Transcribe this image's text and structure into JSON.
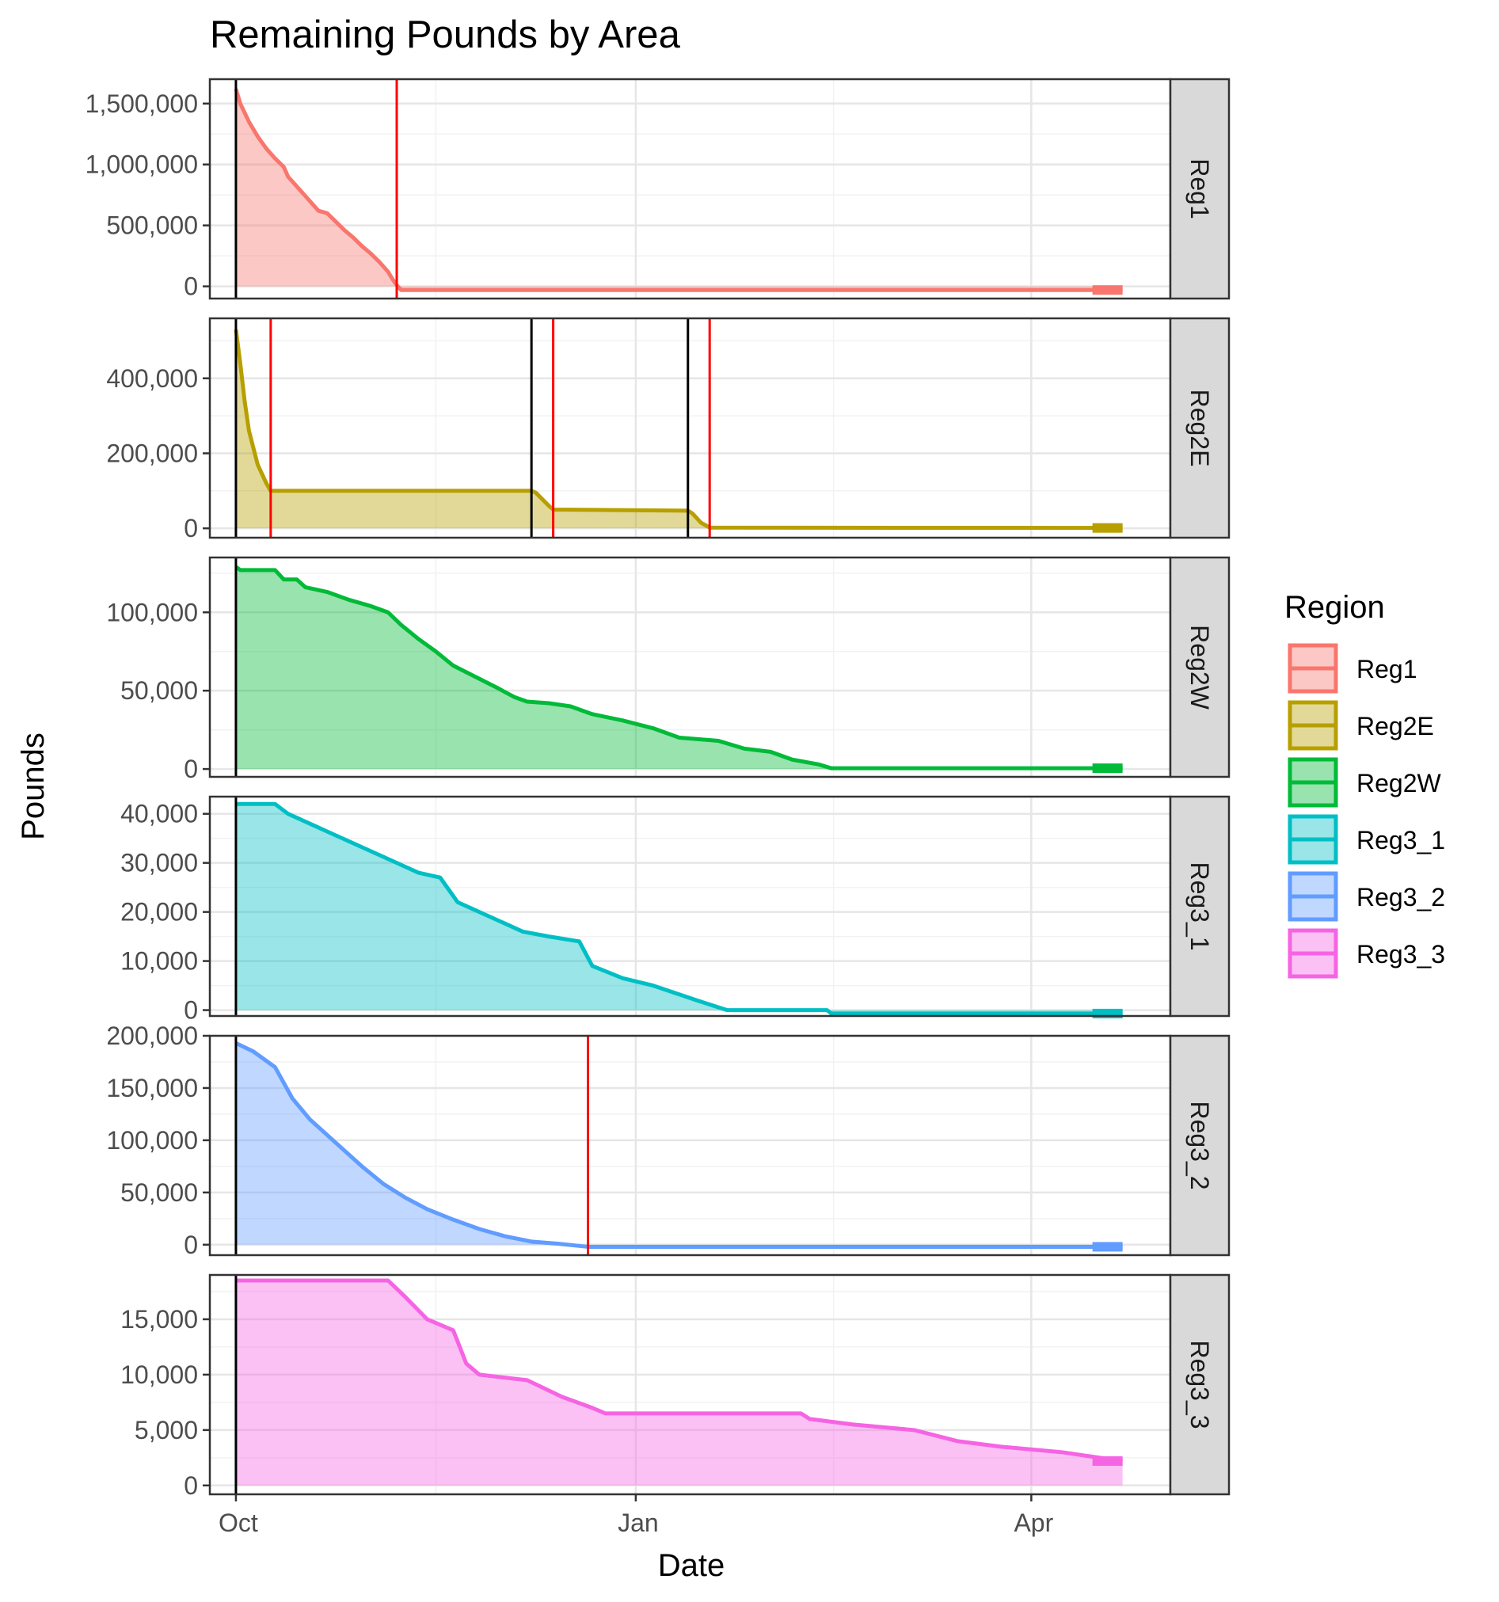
{
  "chart_data": {
    "type": "area",
    "title": "Remaining Pounds by Area",
    "xlabel": "Date",
    "ylabel": "Pounds",
    "x_axis": {
      "min": "2023-09-25",
      "max": "2024-05-03",
      "ticks": [
        {
          "date": "2023-10-01",
          "label": "Oct"
        },
        {
          "date": "2024-01-01",
          "label": "Jan"
        },
        {
          "date": "2024-04-01",
          "label": "Apr"
        }
      ]
    },
    "grid": true,
    "legend": {
      "title": "Region",
      "position": "right",
      "entries": [
        "Reg1",
        "Reg2E",
        "Reg2W",
        "Reg3_1",
        "Reg3_2",
        "Reg3_3"
      ]
    },
    "colors": {
      "Reg1": "#F8766D",
      "Reg2E": "#B79F00",
      "Reg2W": "#00BA38",
      "Reg3_1": "#00BFC4",
      "Reg3_2": "#619CFF",
      "Reg3_3": "#F564E3",
      "open_line": "#000000",
      "close_line": "#FF0000"
    },
    "panels": [
      {
        "name": "Reg1",
        "ylim": [
          -100000,
          1700000
        ],
        "yticks": [
          0,
          500000,
          1000000,
          1500000
        ],
        "ytick_labels": [
          "0",
          "500,000",
          "1,000,000",
          "1,500,000"
        ],
        "open_dates": [
          "2023-10-01"
        ],
        "close_dates": [
          "2023-11-07"
        ],
        "points": [
          [
            "2023-10-01",
            1620000
          ],
          [
            "2023-10-02",
            1500000
          ],
          [
            "2023-10-04",
            1350000
          ],
          [
            "2023-10-06",
            1230000
          ],
          [
            "2023-10-08",
            1130000
          ],
          [
            "2023-10-10",
            1050000
          ],
          [
            "2023-10-12",
            980000
          ],
          [
            "2023-10-13",
            900000
          ],
          [
            "2023-10-15",
            820000
          ],
          [
            "2023-10-17",
            740000
          ],
          [
            "2023-10-19",
            660000
          ],
          [
            "2023-10-20",
            620000
          ],
          [
            "2023-10-22",
            600000
          ],
          [
            "2023-10-24",
            530000
          ],
          [
            "2023-10-26",
            460000
          ],
          [
            "2023-10-28",
            400000
          ],
          [
            "2023-10-30",
            330000
          ],
          [
            "2023-11-01",
            270000
          ],
          [
            "2023-11-03",
            200000
          ],
          [
            "2023-11-05",
            120000
          ],
          [
            "2023-11-06",
            60000
          ],
          [
            "2023-11-07",
            10000
          ],
          [
            "2023-11-08",
            -30000
          ],
          [
            "2024-04-15",
            -30000
          ],
          [
            "2024-04-22",
            -30000
          ]
        ]
      },
      {
        "name": "Reg2E",
        "ylim": [
          -25000,
          560000
        ],
        "yticks": [
          0,
          200000,
          400000
        ],
        "ytick_labels": [
          "0",
          "200,000",
          "400,000"
        ],
        "open_dates": [
          "2023-10-01",
          "2023-12-08",
          "2024-01-13"
        ],
        "close_dates": [
          "2023-10-09",
          "2023-12-13",
          "2024-01-18"
        ],
        "points": [
          [
            "2023-10-01",
            530000
          ],
          [
            "2023-10-02",
            440000
          ],
          [
            "2023-10-03",
            340000
          ],
          [
            "2023-10-04",
            260000
          ],
          [
            "2023-10-06",
            170000
          ],
          [
            "2023-10-08",
            120000
          ],
          [
            "2023-10-09",
            100000
          ],
          [
            "2023-12-08",
            100000
          ],
          [
            "2023-12-09",
            95000
          ],
          [
            "2023-12-12",
            60000
          ],
          [
            "2023-12-13",
            50000
          ],
          [
            "2024-01-13",
            47000
          ],
          [
            "2024-01-14",
            40000
          ],
          [
            "2024-01-16",
            15000
          ],
          [
            "2024-01-18",
            2000
          ],
          [
            "2024-04-22",
            1000
          ]
        ]
      },
      {
        "name": "Reg2W",
        "ylim": [
          -5000,
          135000
        ],
        "yticks": [
          0,
          50000,
          100000
        ],
        "ytick_labels": [
          "0",
          "50,000",
          "100,000"
        ],
        "open_dates": [
          "2023-10-01"
        ],
        "close_dates": [],
        "points": [
          [
            "2023-10-01",
            129000
          ],
          [
            "2023-10-02",
            127000
          ],
          [
            "2023-10-10",
            127000
          ],
          [
            "2023-10-12",
            121000
          ],
          [
            "2023-10-15",
            121000
          ],
          [
            "2023-10-17",
            116000
          ],
          [
            "2023-10-22",
            113000
          ],
          [
            "2023-10-27",
            108000
          ],
          [
            "2023-11-01",
            104000
          ],
          [
            "2023-11-05",
            100000
          ],
          [
            "2023-11-08",
            92000
          ],
          [
            "2023-11-12",
            83000
          ],
          [
            "2023-11-16",
            75000
          ],
          [
            "2023-11-20",
            66000
          ],
          [
            "2023-11-25",
            59000
          ],
          [
            "2023-11-30",
            52000
          ],
          [
            "2023-12-04",
            46000
          ],
          [
            "2023-12-07",
            43000
          ],
          [
            "2023-12-12",
            42000
          ],
          [
            "2023-12-17",
            40000
          ],
          [
            "2023-12-22",
            35000
          ],
          [
            "2023-12-29",
            31000
          ],
          [
            "2024-01-05",
            26000
          ],
          [
            "2024-01-11",
            20000
          ],
          [
            "2024-01-20",
            18000
          ],
          [
            "2024-01-26",
            13000
          ],
          [
            "2024-02-01",
            11000
          ],
          [
            "2024-02-06",
            6000
          ],
          [
            "2024-02-12",
            3000
          ],
          [
            "2024-02-15",
            500
          ],
          [
            "2024-04-22",
            500
          ]
        ]
      },
      {
        "name": "Reg3_1",
        "ylim": [
          -1200,
          43500
        ],
        "yticks": [
          0,
          10000,
          20000,
          30000,
          40000
        ],
        "ytick_labels": [
          "0",
          "10,000",
          "20,000",
          "30,000",
          "40,000"
        ],
        "open_dates": [
          "2023-10-01"
        ],
        "close_dates": [],
        "points": [
          [
            "2023-10-01",
            42000
          ],
          [
            "2023-10-10",
            42000
          ],
          [
            "2023-10-13",
            40000
          ],
          [
            "2023-10-18",
            38000
          ],
          [
            "2023-10-23",
            36000
          ],
          [
            "2023-10-28",
            34000
          ],
          [
            "2023-11-02",
            32000
          ],
          [
            "2023-11-07",
            30000
          ],
          [
            "2023-11-12",
            28000
          ],
          [
            "2023-11-17",
            27000
          ],
          [
            "2023-11-21",
            22000
          ],
          [
            "2023-11-26",
            20000
          ],
          [
            "2023-12-01",
            18000
          ],
          [
            "2023-12-06",
            16000
          ],
          [
            "2023-12-12",
            15000
          ],
          [
            "2023-12-19",
            14000
          ],
          [
            "2023-12-22",
            9000
          ],
          [
            "2023-12-29",
            6500
          ],
          [
            "2024-01-05",
            5000
          ],
          [
            "2024-01-10",
            3500
          ],
          [
            "2024-01-15",
            2000
          ],
          [
            "2024-01-22",
            0
          ],
          [
            "2024-02-14",
            0
          ],
          [
            "2024-02-15",
            -700
          ],
          [
            "2024-04-22",
            -700
          ]
        ]
      },
      {
        "name": "Reg3_2",
        "ylim": [
          -10000,
          200000
        ],
        "yticks": [
          0,
          50000,
          100000,
          150000,
          200000
        ],
        "ytick_labels": [
          "0",
          "50,000",
          "100,000",
          "150,000",
          "200,000"
        ],
        "open_dates": [
          "2023-10-01"
        ],
        "close_dates": [
          "2023-12-21"
        ],
        "points": [
          [
            "2023-10-01",
            193000
          ],
          [
            "2023-10-05",
            185000
          ],
          [
            "2023-10-10",
            170000
          ],
          [
            "2023-10-14",
            140000
          ],
          [
            "2023-10-18",
            120000
          ],
          [
            "2023-10-22",
            105000
          ],
          [
            "2023-10-26",
            90000
          ],
          [
            "2023-10-30",
            75000
          ],
          [
            "2023-11-04",
            58000
          ],
          [
            "2023-11-09",
            45000
          ],
          [
            "2023-11-14",
            34000
          ],
          [
            "2023-11-20",
            24000
          ],
          [
            "2023-11-26",
            15000
          ],
          [
            "2023-12-02",
            8000
          ],
          [
            "2023-12-08",
            3000
          ],
          [
            "2023-12-14",
            1000
          ],
          [
            "2023-12-21",
            -2000
          ],
          [
            "2024-04-22",
            -2000
          ]
        ]
      },
      {
        "name": "Reg3_3",
        "ylim": [
          -800,
          19000
        ],
        "yticks": [
          0,
          5000,
          10000,
          15000
        ],
        "ytick_labels": [
          "0",
          "5,000",
          "10,000",
          "15,000"
        ],
        "open_dates": [
          "2023-10-01"
        ],
        "close_dates": [],
        "points": [
          [
            "2023-10-01",
            18500
          ],
          [
            "2023-11-05",
            18500
          ],
          [
            "2023-11-09",
            17000
          ],
          [
            "2023-11-14",
            15000
          ],
          [
            "2023-11-20",
            14000
          ],
          [
            "2023-11-23",
            11000
          ],
          [
            "2023-11-26",
            10000
          ],
          [
            "2023-12-07",
            9500
          ],
          [
            "2023-12-15",
            8000
          ],
          [
            "2023-12-22",
            7000
          ],
          [
            "2023-12-25",
            6500
          ],
          [
            "2024-02-08",
            6500
          ],
          [
            "2024-02-10",
            6000
          ],
          [
            "2024-02-20",
            5500
          ],
          [
            "2024-03-05",
            5000
          ],
          [
            "2024-03-15",
            4000
          ],
          [
            "2024-03-25",
            3500
          ],
          [
            "2024-04-08",
            3000
          ],
          [
            "2024-04-22",
            2200
          ]
        ]
      }
    ]
  }
}
